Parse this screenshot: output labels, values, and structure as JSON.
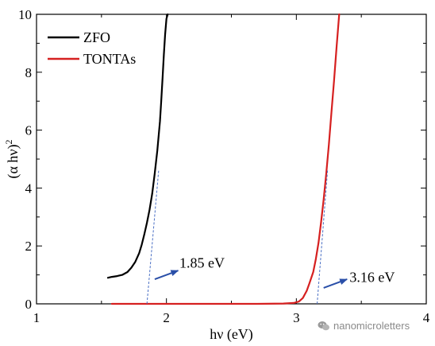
{
  "chart_data": {
    "type": "line",
    "title": "",
    "xlabel": "hν (eV)",
    "ylabel_base": "(α hν)",
    "ylabel_sup": "2",
    "xlim": [
      1,
      4
    ],
    "ylim": [
      0,
      10
    ],
    "xticks": [
      1,
      2,
      3,
      4
    ],
    "xtick_labels": [
      "1",
      "2",
      "3",
      "4"
    ],
    "yticks": [
      0,
      2,
      4,
      6,
      8,
      10
    ],
    "ytick_labels": [
      "0",
      "2",
      "4",
      "6",
      "8",
      "10"
    ],
    "grid": false,
    "legend_position": "top-left",
    "series": [
      {
        "name": "ZFO",
        "color": "#000000",
        "x": [
          1.55,
          1.58,
          1.62,
          1.66,
          1.7,
          1.73,
          1.76,
          1.79,
          1.81,
          1.83,
          1.85,
          1.87,
          1.89,
          1.91,
          1.93,
          1.95,
          1.96,
          1.97,
          1.98,
          1.99,
          2.0,
          2.01
        ],
        "y": [
          0.9,
          0.93,
          0.96,
          1.0,
          1.1,
          1.25,
          1.45,
          1.75,
          2.05,
          2.4,
          2.8,
          3.25,
          3.8,
          4.5,
          5.3,
          6.3,
          7.0,
          7.8,
          8.6,
          9.3,
          9.85,
          10.0
        ]
      },
      {
        "name": "TONTAs",
        "color": "#d62020",
        "x": [
          1.58,
          1.7,
          1.9,
          2.1,
          2.3,
          2.5,
          2.7,
          2.9,
          2.98,
          3.02,
          3.05,
          3.08,
          3.1,
          3.13,
          3.15,
          3.17,
          3.19,
          3.21,
          3.23,
          3.25,
          3.27,
          3.29,
          3.31,
          3.33
        ],
        "y": [
          0.0,
          0.0,
          0.0,
          0.0,
          0.0,
          0.0,
          0.0,
          0.01,
          0.03,
          0.08,
          0.2,
          0.45,
          0.7,
          1.1,
          1.55,
          2.1,
          2.8,
          3.6,
          4.5,
          5.5,
          6.6,
          7.7,
          8.9,
          10.0
        ]
      }
    ],
    "tangents": [
      {
        "series": "ZFO",
        "color": "#4a6fc4",
        "x1": 1.85,
        "y1": 0,
        "x2": 1.94,
        "y2": 4.6
      },
      {
        "series": "TONTAs",
        "color": "#4a6fc4",
        "x1": 3.16,
        "y1": 0,
        "x2": 3.24,
        "y2": 4.6
      }
    ],
    "annotations": [
      {
        "text": "1.85 eV",
        "arrow_from": [
          1.91,
          0.85
        ],
        "arrow_to": [
          2.09,
          1.15
        ],
        "text_pos": [
          2.1,
          1.25
        ],
        "color": "#2a4fa8"
      },
      {
        "text": "3.16 eV",
        "arrow_from": [
          3.21,
          0.55
        ],
        "arrow_to": [
          3.39,
          0.85
        ],
        "text_pos": [
          3.41,
          0.75
        ],
        "color": "#2a4fa8"
      }
    ]
  },
  "watermark": {
    "text": "nanomicroletters",
    "icon": "wechat-icon"
  }
}
